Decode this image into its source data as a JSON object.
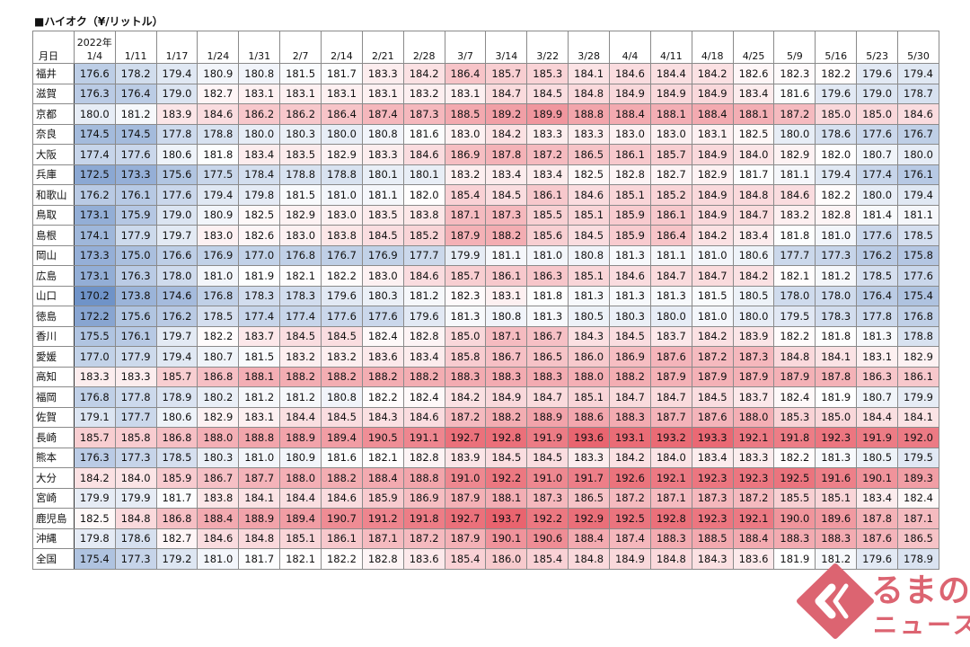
{
  "title": "■ハイオク（¥/リットル）",
  "table": {
    "row_header": "月日",
    "year_label": "2022年",
    "dates": [
      "1/4",
      "1/11",
      "1/17",
      "1/24",
      "1/31",
      "2/7",
      "2/14",
      "2/21",
      "2/28",
      "3/7",
      "3/14",
      "3/22",
      "3/28",
      "4/4",
      "4/11",
      "4/18",
      "4/25",
      "5/9",
      "5/16",
      "5/23",
      "5/30"
    ],
    "rows": [
      {
        "pref": "福井",
        "values": [
          176.6,
          178.2,
          179.4,
          180.9,
          180.8,
          181.5,
          181.7,
          183.3,
          184.2,
          186.4,
          185.7,
          185.3,
          184.1,
          184.6,
          184.4,
          184.2,
          182.6,
          182.3,
          182.2,
          179.6,
          179.4
        ]
      },
      {
        "pref": "滋賀",
        "values": [
          176.3,
          176.4,
          179.0,
          182.7,
          183.1,
          183.1,
          183.1,
          183.1,
          183.2,
          183.1,
          184.7,
          184.5,
          184.8,
          184.9,
          184.9,
          184.9,
          183.4,
          181.6,
          179.6,
          179.0,
          178.7
        ]
      },
      {
        "pref": "京都",
        "values": [
          180.0,
          181.2,
          183.9,
          184.6,
          186.2,
          186.2,
          186.4,
          187.4,
          187.3,
          188.5,
          189.2,
          189.9,
          188.8,
          188.4,
          188.1,
          188.4,
          188.1,
          187.2,
          185.0,
          185.0,
          184.6
        ]
      },
      {
        "pref": "奈良",
        "values": [
          174.5,
          174.5,
          177.8,
          178.8,
          180.0,
          180.3,
          180.0,
          180.8,
          181.6,
          183.0,
          184.2,
          183.3,
          183.3,
          183.0,
          183.0,
          183.1,
          182.5,
          180.0,
          178.6,
          177.6,
          176.7
        ]
      },
      {
        "pref": "大阪",
        "values": [
          177.4,
          177.6,
          180.6,
          181.8,
          183.4,
          183.5,
          182.9,
          183.3,
          184.6,
          186.9,
          187.8,
          187.2,
          186.5,
          186.1,
          185.7,
          184.9,
          184.0,
          182.9,
          182.0,
          180.7,
          180.0
        ]
      },
      {
        "pref": "兵庫",
        "values": [
          172.5,
          173.3,
          175.6,
          177.5,
          178.4,
          178.8,
          178.8,
          180.1,
          180.1,
          183.2,
          183.4,
          183.4,
          182.5,
          182.8,
          182.7,
          182.9,
          181.7,
          181.1,
          179.4,
          177.4,
          176.1
        ]
      },
      {
        "pref": "和歌山",
        "values": [
          176.2,
          176.1,
          177.6,
          179.4,
          179.8,
          181.5,
          181.0,
          181.1,
          182.0,
          185.4,
          184.5,
          186.1,
          184.6,
          185.1,
          185.2,
          184.9,
          184.8,
          184.6,
          182.2,
          180.0,
          179.4
        ]
      },
      {
        "pref": "鳥取",
        "values": [
          173.1,
          175.9,
          179.0,
          180.9,
          182.5,
          182.9,
          183.0,
          183.5,
          183.8,
          187.1,
          187.3,
          185.5,
          185.1,
          185.9,
          186.1,
          184.9,
          184.7,
          183.2,
          182.8,
          181.4,
          181.1
        ]
      },
      {
        "pref": "島根",
        "values": [
          174.1,
          177.9,
          179.7,
          183.0,
          182.6,
          183.0,
          183.8,
          184.5,
          185.2,
          187.9,
          188.2,
          185.6,
          184.5,
          185.9,
          186.4,
          184.2,
          183.4,
          181.8,
          181.0,
          177.6,
          178.5
        ]
      },
      {
        "pref": "岡山",
        "values": [
          173.3,
          175.0,
          176.6,
          176.9,
          177.0,
          176.8,
          176.7,
          176.9,
          177.7,
          179.9,
          181.1,
          181.0,
          180.8,
          181.3,
          181.1,
          181.0,
          180.6,
          177.7,
          177.3,
          176.2,
          175.8
        ]
      },
      {
        "pref": "広島",
        "values": [
          173.1,
          176.3,
          178.0,
          181.0,
          181.9,
          182.1,
          182.2,
          183.0,
          184.6,
          185.7,
          186.1,
          186.3,
          185.1,
          184.6,
          184.7,
          184.7,
          184.2,
          182.1,
          181.2,
          178.5,
          177.6
        ]
      },
      {
        "pref": "山口",
        "values": [
          170.2,
          173.8,
          174.6,
          176.8,
          178.3,
          178.3,
          179.6,
          180.3,
          181.2,
          182.3,
          183.1,
          181.8,
          181.3,
          181.3,
          181.3,
          181.5,
          180.5,
          178.0,
          178.0,
          176.4,
          175.4
        ]
      },
      {
        "pref": "徳島",
        "values": [
          172.2,
          175.6,
          176.2,
          178.5,
          177.4,
          177.4,
          177.6,
          177.6,
          179.6,
          181.3,
          180.8,
          181.3,
          180.5,
          180.3,
          180.0,
          181.0,
          180.0,
          179.5,
          178.3,
          177.8,
          176.8
        ]
      },
      {
        "pref": "香川",
        "values": [
          175.5,
          176.1,
          179.7,
          182.2,
          183.7,
          184.5,
          184.5,
          182.4,
          182.8,
          185.0,
          187.1,
          186.7,
          184.3,
          184.5,
          183.7,
          184.2,
          183.9,
          182.2,
          181.8,
          181.3,
          178.8
        ]
      },
      {
        "pref": "愛媛",
        "values": [
          177.0,
          177.9,
          179.4,
          180.7,
          181.5,
          183.2,
          183.2,
          183.6,
          183.4,
          185.8,
          186.7,
          186.5,
          186.0,
          186.9,
          187.6,
          187.2,
          187.3,
          184.8,
          184.1,
          183.1,
          182.9
        ]
      },
      {
        "pref": "高知",
        "values": [
          183.3,
          183.3,
          185.7,
          186.8,
          188.1,
          188.2,
          188.2,
          188.2,
          188.2,
          188.3,
          188.3,
          188.3,
          188.0,
          188.2,
          187.9,
          187.9,
          187.9,
          187.9,
          187.8,
          186.3,
          186.1
        ]
      },
      {
        "pref": "福岡",
        "values": [
          176.8,
          177.8,
          178.9,
          180.2,
          181.2,
          181.2,
          180.8,
          182.2,
          182.4,
          184.2,
          184.9,
          184.7,
          185.1,
          184.7,
          184.7,
          184.5,
          183.7,
          182.4,
          181.9,
          180.7,
          179.9
        ]
      },
      {
        "pref": "佐賀",
        "values": [
          179.1,
          177.7,
          180.6,
          182.9,
          183.1,
          184.4,
          184.5,
          184.3,
          184.6,
          187.2,
          188.2,
          188.9,
          188.6,
          188.3,
          187.7,
          187.6,
          188.0,
          185.3,
          185.0,
          184.4,
          184.1
        ]
      },
      {
        "pref": "長崎",
        "values": [
          185.7,
          185.8,
          186.8,
          188.0,
          188.8,
          188.9,
          189.4,
          190.5,
          191.1,
          192.7,
          192.8,
          191.9,
          193.6,
          193.1,
          193.2,
          193.3,
          192.1,
          191.8,
          192.3,
          191.9,
          192.0
        ]
      },
      {
        "pref": "熊本",
        "values": [
          176.3,
          177.3,
          178.5,
          180.3,
          181.0,
          180.9,
          181.6,
          182.1,
          182.8,
          183.9,
          184.5,
          184.5,
          183.3,
          184.2,
          184.0,
          183.4,
          183.3,
          182.2,
          181.3,
          180.5,
          179.5
        ]
      },
      {
        "pref": "大分",
        "values": [
          184.2,
          184.0,
          185.9,
          186.7,
          187.7,
          188.0,
          188.2,
          188.4,
          188.8,
          191.0,
          192.2,
          191.0,
          191.7,
          192.6,
          192.1,
          192.3,
          192.3,
          192.5,
          191.6,
          190.1,
          189.3
        ]
      },
      {
        "pref": "宮崎",
        "values": [
          179.9,
          179.9,
          181.7,
          183.8,
          184.1,
          184.4,
          184.6,
          185.9,
          186.9,
          187.9,
          188.1,
          187.3,
          186.5,
          187.2,
          187.1,
          187.3,
          187.2,
          185.5,
          185.1,
          183.4,
          182.4
        ]
      },
      {
        "pref": "鹿児島",
        "values": [
          182.5,
          184.8,
          186.8,
          188.4,
          188.9,
          189.4,
          190.7,
          191.2,
          191.8,
          192.7,
          193.7,
          192.2,
          192.9,
          192.5,
          192.8,
          192.3,
          192.1,
          190.0,
          189.6,
          187.8,
          187.1
        ]
      },
      {
        "pref": "沖縄",
        "values": [
          179.8,
          178.6,
          182.7,
          184.6,
          184.8,
          185.1,
          186.1,
          187.1,
          187.2,
          187.9,
          190.1,
          190.6,
          188.4,
          187.4,
          188.3,
          188.5,
          188.4,
          188.3,
          188.3,
          187.6,
          186.5
        ]
      },
      {
        "pref": "全国",
        "values": [
          175.4,
          177.3,
          179.2,
          181.0,
          181.7,
          182.1,
          182.2,
          182.8,
          183.6,
          185.4,
          186.0,
          185.4,
          184.8,
          184.9,
          184.8,
          184.3,
          183.6,
          181.9,
          181.2,
          179.6,
          178.9
        ]
      }
    ]
  },
  "colors": {
    "low": "#6f93c8",
    "mid": "#ffffff",
    "high": "#e9646f",
    "logo": "#dc6471"
  },
  "logo": {
    "line1": "るまの",
    "line2": "ニュース"
  }
}
